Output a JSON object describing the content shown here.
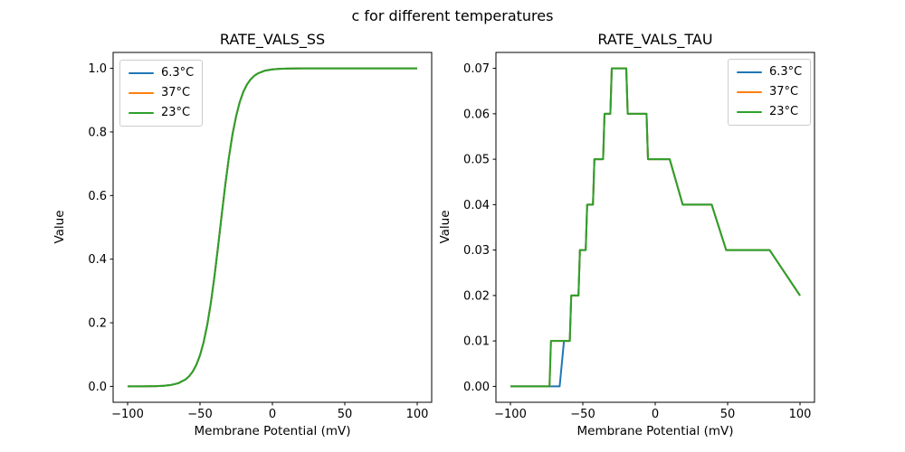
{
  "figure": {
    "suptitle": "c for different temperatures",
    "background": "#ffffff",
    "text_color": "#000000"
  },
  "legend": {
    "border_color": "#cccccc",
    "background": "#ffffff",
    "labels": [
      "6.3°C",
      "37°C",
      "23°C"
    ]
  },
  "chart_data": [
    {
      "type": "line",
      "title": "RATE_VALS_SS",
      "xlabel": "Membrane Potential (mV)",
      "ylabel": "Value",
      "xlim": [
        -110,
        110
      ],
      "ylim": [
        -0.05,
        1.05
      ],
      "xticks": [
        -100,
        -50,
        0,
        50,
        100
      ],
      "xtick_labels": [
        "−100",
        "−50",
        "0",
        "50",
        "100"
      ],
      "yticks": [
        0.0,
        0.2,
        0.4,
        0.6,
        0.8,
        1.0
      ],
      "ytick_labels": [
        "0.0",
        "0.2",
        "0.4",
        "0.6",
        "0.8",
        "1.0"
      ],
      "grid": false,
      "legend_position": "upper left",
      "curves": {
        "ss_sigmoid": {
          "x": [
            -100,
            -95,
            -90,
            -85,
            -80,
            -75,
            -70,
            -65,
            -60,
            -57.5,
            -55,
            -52.5,
            -50,
            -47.5,
            -45,
            -42.5,
            -40,
            -37.5,
            -35,
            -32.5,
            -30,
            -27.5,
            -25,
            -22.5,
            -20,
            -17.5,
            -15,
            -12.5,
            -10,
            -5,
            0,
            5,
            10,
            15,
            20,
            30,
            40,
            50,
            60,
            70,
            80,
            90,
            100
          ],
          "y": [
            0.0,
            0.0001,
            0.0002,
            0.0004,
            0.0009,
            0.002,
            0.0045,
            0.0099,
            0.0217,
            0.0319,
            0.0467,
            0.0679,
            0.0978,
            0.1388,
            0.1934,
            0.2628,
            0.3463,
            0.4407,
            0.5397,
            0.6354,
            0.7213,
            0.794,
            0.8508,
            0.895,
            0.927,
            0.9496,
            0.9655,
            0.9766,
            0.9841,
            0.9928,
            0.9967,
            0.9985,
            0.9993,
            0.9997,
            0.9999,
            1.0,
            1.0,
            1.0,
            1.0,
            1.0,
            1.0,
            1.0,
            1.0
          ]
        }
      },
      "series": [
        {
          "name": "6.3°C",
          "color": "#1f77b4",
          "curve": "ss_sigmoid"
        },
        {
          "name": "37°C",
          "color": "#ff7f0e",
          "curve": "ss_sigmoid"
        },
        {
          "name": "23°C",
          "color": "#2ca02c",
          "curve": "ss_sigmoid"
        }
      ]
    },
    {
      "type": "line",
      "title": "RATE_VALS_TAU",
      "xlabel": "Membrane Potential (mV)",
      "ylabel": "Value",
      "xlim": [
        -110,
        110
      ],
      "ylim": [
        -0.0035,
        0.0735
      ],
      "xticks": [
        -100,
        -50,
        0,
        50,
        100
      ],
      "xtick_labels": [
        "−100",
        "−50",
        "0",
        "50",
        "100"
      ],
      "yticks": [
        0.0,
        0.01,
        0.02,
        0.03,
        0.04,
        0.05,
        0.06,
        0.07
      ],
      "ytick_labels": [
        "0.00",
        "0.01",
        "0.02",
        "0.03",
        "0.04",
        "0.05",
        "0.06",
        "0.07"
      ],
      "grid": false,
      "legend_position": "upper right",
      "curves": {
        "tau_6_3": {
          "x": [
            -100,
            -66,
            -63,
            -59,
            -58,
            -53,
            -52,
            -48,
            -47,
            -43,
            -42,
            -36,
            -35,
            -31,
            -30,
            -20,
            -19,
            -6,
            -5,
            10,
            19,
            39,
            49,
            79,
            100
          ],
          "y": [
            0.0,
            0.0,
            0.01,
            0.01,
            0.02,
            0.02,
            0.03,
            0.03,
            0.04,
            0.04,
            0.05,
            0.05,
            0.06,
            0.06,
            0.07,
            0.07,
            0.06,
            0.06,
            0.05,
            0.05,
            0.04,
            0.04,
            0.03,
            0.03,
            0.02
          ]
        },
        "tau_warm": {
          "x": [
            -100,
            -73,
            -72,
            -59,
            -58,
            -53,
            -52,
            -48,
            -47,
            -43,
            -42,
            -36,
            -35,
            -31,
            -30,
            -20,
            -19,
            -6,
            -5,
            10,
            19,
            39,
            49,
            79,
            100
          ],
          "y": [
            0.0,
            0.0,
            0.01,
            0.01,
            0.02,
            0.02,
            0.03,
            0.03,
            0.04,
            0.04,
            0.05,
            0.05,
            0.06,
            0.06,
            0.07,
            0.07,
            0.06,
            0.06,
            0.05,
            0.05,
            0.04,
            0.04,
            0.03,
            0.03,
            0.02
          ]
        }
      },
      "series": [
        {
          "name": "6.3°C",
          "color": "#1f77b4",
          "curve": "tau_6_3"
        },
        {
          "name": "37°C",
          "color": "#ff7f0e",
          "curve": "tau_warm"
        },
        {
          "name": "23°C",
          "color": "#2ca02c",
          "curve": "tau_warm"
        }
      ]
    }
  ]
}
